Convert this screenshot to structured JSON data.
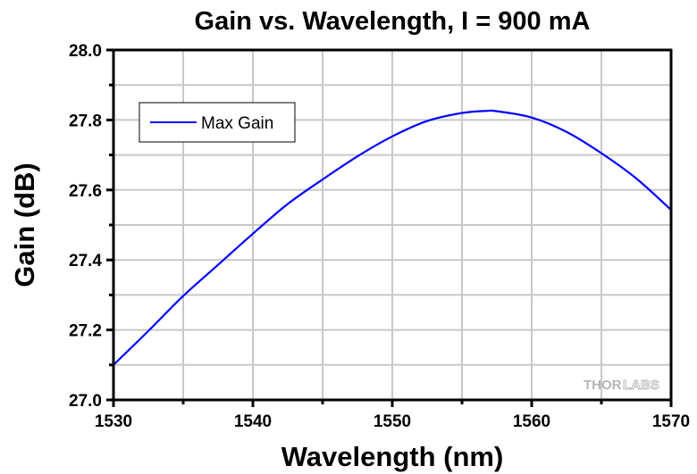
{
  "chart_data": {
    "type": "line",
    "title": "Gain vs. Wavelength, I = 900 mA",
    "xlabel": "Wavelength (nm)",
    "ylabel": "Gain (dB)",
    "xlim": [
      1530,
      1570
    ],
    "ylim": [
      27.0,
      28.0
    ],
    "x_ticks": [
      1530,
      1540,
      1550,
      1560,
      1570
    ],
    "x_tick_labels": [
      "1530",
      "1540",
      "1550",
      "1560",
      "1570"
    ],
    "x_minor_step": 5,
    "y_ticks": [
      27.0,
      27.2,
      27.4,
      27.6,
      27.8,
      28.0
    ],
    "y_tick_labels": [
      "27.0",
      "27.2",
      "27.4",
      "27.6",
      "27.8",
      "28.0"
    ],
    "y_minor_step": 0.1,
    "grid": true,
    "legend": {
      "position": "top-left",
      "entries": [
        "Max Gain"
      ]
    },
    "series": [
      {
        "name": "Max Gain",
        "color": "#0000ff",
        "x": [
          1530,
          1532.5,
          1535,
          1537.5,
          1540,
          1542.5,
          1545,
          1547.5,
          1550,
          1552.5,
          1555,
          1556.8,
          1557.5,
          1560,
          1562.5,
          1565,
          1567.5,
          1570
        ],
        "y": [
          27.1,
          27.197,
          27.297,
          27.386,
          27.475,
          27.56,
          27.63,
          27.696,
          27.753,
          27.797,
          27.82,
          27.826,
          27.825,
          27.807,
          27.766,
          27.705,
          27.633,
          27.543
        ]
      }
    ],
    "watermark": "THORLABS"
  },
  "watermark": {
    "part1": "THOR",
    "part2": "LABS"
  },
  "colors": {
    "grid": "#c8c8c8",
    "axis": "#000000",
    "series": "#0000ff"
  }
}
